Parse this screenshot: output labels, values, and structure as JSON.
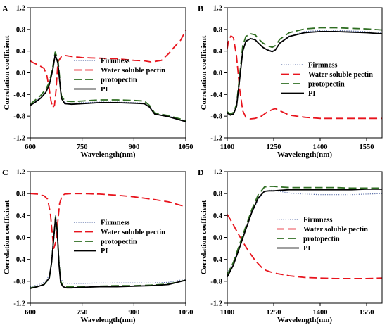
{
  "colors": {
    "firmness": "#5b6fa8",
    "water_soluble_pectin": "#e8141d",
    "protopectin": "#2f6e22",
    "pi": "#000000"
  },
  "chart_data": [
    {
      "panel": "A",
      "type": "line",
      "xlabel": "Wavelength(nm)",
      "ylabel": "Correlation coefficient",
      "xlim": [
        600,
        1050
      ],
      "ylim": [
        -1.2,
        1.2
      ],
      "xticks": [
        600,
        750,
        900,
        1050
      ],
      "xtick_labels": [
        "600",
        "750",
        "900",
        "1050"
      ],
      "yticks": [
        1.2,
        0.8,
        0.4,
        0.0,
        -0.4,
        -0.8,
        -1.2
      ],
      "ytick_labels": [
        "1.2",
        "0.8",
        "0.4",
        "0.0",
        "-0.4",
        "-0.8",
        "-1.2"
      ],
      "legend_position": "center",
      "series": [
        {
          "name": "Firmness",
          "style": "dotted",
          "color_key": "firmness",
          "x": [
            600,
            615,
            630,
            645,
            655,
            665,
            672,
            680,
            690,
            700,
            720,
            750,
            800,
            850,
            900,
            930,
            945,
            960,
            1000,
            1050
          ],
          "y": [
            -0.58,
            -0.52,
            -0.46,
            -0.35,
            -0.22,
            0.05,
            0.35,
            0.2,
            -0.45,
            -0.55,
            -0.56,
            -0.55,
            -0.54,
            -0.54,
            -0.55,
            -0.56,
            -0.62,
            -0.75,
            -0.8,
            -0.88
          ]
        },
        {
          "name": "Water soluble pectin",
          "style": "dashed",
          "color_key": "water_soluble_pectin",
          "x": [
            600,
            610,
            625,
            640,
            648,
            655,
            660,
            665,
            670,
            675,
            680,
            690,
            700,
            720,
            750,
            800,
            850,
            900,
            930,
            950,
            980,
            1000,
            1020,
            1035,
            1050
          ],
          "y": [
            0.22,
            0.18,
            0.14,
            0.08,
            -0.05,
            -0.3,
            -0.52,
            -0.64,
            -0.6,
            -0.3,
            0.2,
            0.3,
            0.32,
            0.3,
            0.28,
            0.27,
            0.26,
            0.23,
            0.22,
            0.2,
            0.23,
            0.35,
            0.5,
            0.6,
            0.78
          ]
        },
        {
          "name": "protopectin",
          "style": "dashed",
          "color_key": "protopectin",
          "x": [
            600,
            615,
            630,
            645,
            655,
            665,
            672,
            680,
            690,
            700,
            720,
            750,
            800,
            850,
            900,
            930,
            945,
            960,
            1000,
            1050
          ],
          "y": [
            -0.58,
            -0.5,
            -0.42,
            -0.3,
            -0.18,
            0.1,
            0.38,
            0.25,
            -0.42,
            -0.52,
            -0.53,
            -0.52,
            -0.5,
            -0.5,
            -0.51,
            -0.52,
            -0.6,
            -0.74,
            -0.79,
            -0.88
          ]
        },
        {
          "name": "PI",
          "style": "solid",
          "color_key": "pi",
          "x": [
            600,
            615,
            630,
            645,
            655,
            665,
            672,
            680,
            690,
            700,
            720,
            750,
            800,
            850,
            900,
            930,
            945,
            960,
            1000,
            1050
          ],
          "y": [
            -0.6,
            -0.54,
            -0.47,
            -0.36,
            -0.22,
            0.05,
            0.33,
            0.18,
            -0.47,
            -0.57,
            -0.58,
            -0.57,
            -0.55,
            -0.55,
            -0.56,
            -0.57,
            -0.63,
            -0.76,
            -0.81,
            -0.9
          ]
        }
      ]
    },
    {
      "panel": "B",
      "type": "line",
      "xlabel": "Wavelength(nm)",
      "ylabel": "Correlation coefficient",
      "xlim": [
        1100,
        1600
      ],
      "ylim": [
        -1.2,
        1.2
      ],
      "xticks": [
        1100,
        1250,
        1400,
        1550
      ],
      "xtick_labels": [
        "1100",
        "1250",
        "1400",
        "1550"
      ],
      "yticks": [
        1.2,
        0.8,
        0.4,
        0.0,
        -0.4,
        -0.8,
        -1.2
      ],
      "ytick_labels": [
        "1.2",
        "0.8",
        "0.4",
        "0.0",
        "-0.4",
        "-0.8",
        "-1.2"
      ],
      "legend_position": "center",
      "series": [
        {
          "name": "Firmness",
          "style": "dotted",
          "color_key": "firmness",
          "x": [
            1100,
            1110,
            1120,
            1130,
            1140,
            1150,
            1160,
            1175,
            1190,
            1200,
            1215,
            1230,
            1245,
            1255,
            1270,
            1300,
            1350,
            1400,
            1450,
            1500,
            1550,
            1600
          ],
          "y": [
            -0.72,
            -0.76,
            -0.74,
            -0.6,
            -0.1,
            0.42,
            0.6,
            0.64,
            0.62,
            0.55,
            0.47,
            0.43,
            0.4,
            0.42,
            0.55,
            0.68,
            0.76,
            0.78,
            0.78,
            0.77,
            0.76,
            0.74
          ]
        },
        {
          "name": "Water soluble pectin",
          "style": "dashed",
          "color_key": "water_soluble_pectin",
          "x": [
            1100,
            1105,
            1112,
            1120,
            1130,
            1140,
            1150,
            1160,
            1175,
            1190,
            1210,
            1230,
            1245,
            1255,
            1270,
            1300,
            1350,
            1400,
            1500,
            1600
          ],
          "y": [
            0.45,
            0.62,
            0.68,
            0.65,
            0.3,
            -0.3,
            -0.7,
            -0.82,
            -0.85,
            -0.84,
            -0.8,
            -0.72,
            -0.68,
            -0.66,
            -0.7,
            -0.78,
            -0.82,
            -0.84,
            -0.84,
            -0.84
          ]
        },
        {
          "name": "protopectin",
          "style": "dashed",
          "color_key": "protopectin",
          "x": [
            1100,
            1110,
            1120,
            1130,
            1140,
            1150,
            1160,
            1175,
            1190,
            1200,
            1215,
            1230,
            1245,
            1255,
            1270,
            1300,
            1350,
            1400,
            1450,
            1500,
            1550,
            1600
          ],
          "y": [
            -0.72,
            -0.76,
            -0.73,
            -0.58,
            -0.05,
            0.5,
            0.67,
            0.72,
            0.7,
            0.63,
            0.55,
            0.5,
            0.47,
            0.5,
            0.62,
            0.74,
            0.81,
            0.83,
            0.83,
            0.82,
            0.81,
            0.79
          ]
        },
        {
          "name": "PI",
          "style": "solid",
          "color_key": "pi",
          "x": [
            1100,
            1110,
            1120,
            1130,
            1140,
            1150,
            1160,
            1175,
            1190,
            1200,
            1215,
            1230,
            1245,
            1255,
            1270,
            1300,
            1350,
            1400,
            1450,
            1500,
            1550,
            1600
          ],
          "y": [
            -0.74,
            -0.78,
            -0.76,
            -0.62,
            -0.12,
            0.4,
            0.58,
            0.63,
            0.61,
            0.55,
            0.47,
            0.42,
            0.39,
            0.42,
            0.55,
            0.67,
            0.74,
            0.76,
            0.76,
            0.75,
            0.74,
            0.72
          ]
        }
      ]
    },
    {
      "panel": "C",
      "type": "line",
      "xlabel": "Wavelength(nm)",
      "ylabel": "Correlation coefficient",
      "xlim": [
        600,
        1050
      ],
      "ylim": [
        -1.2,
        1.2
      ],
      "xticks": [
        600,
        750,
        900,
        1050
      ],
      "xtick_labels": [
        "600",
        "750",
        "900",
        "1050"
      ],
      "yticks": [
        1.2,
        0.8,
        0.4,
        0.0,
        -0.4,
        -0.8,
        -1.2
      ],
      "ytick_labels": [
        "1.2",
        "0.8",
        "0.4",
        "0.0",
        "-0.4",
        "-0.8",
        "-1.2"
      ],
      "legend_position": "center",
      "series": [
        {
          "name": "Firmness",
          "style": "dotted",
          "color_key": "firmness",
          "x": [
            600,
            620,
            640,
            655,
            662,
            668,
            673,
            678,
            683,
            688,
            695,
            705,
            720,
            750,
            800,
            850,
            900,
            950,
            1000,
            1050
          ],
          "y": [
            -0.9,
            -0.87,
            -0.82,
            -0.7,
            -0.4,
            0.05,
            0.42,
            0.2,
            -0.4,
            -0.75,
            -0.82,
            -0.84,
            -0.84,
            -0.84,
            -0.83,
            -0.83,
            -0.83,
            -0.83,
            -0.82,
            -0.76
          ]
        },
        {
          "name": "Water soluble pectin",
          "style": "dashed",
          "color_key": "water_soluble_pectin",
          "x": [
            600,
            620,
            640,
            650,
            658,
            664,
            668,
            672,
            676,
            680,
            685,
            692,
            700,
            720,
            750,
            800,
            850,
            900,
            950,
            1000,
            1050
          ],
          "y": [
            0.8,
            0.79,
            0.76,
            0.7,
            0.45,
            0.05,
            -0.2,
            -0.12,
            0.0,
            0.3,
            0.62,
            0.76,
            0.79,
            0.8,
            0.8,
            0.79,
            0.77,
            0.74,
            0.7,
            0.65,
            0.56
          ]
        },
        {
          "name": "protopectin",
          "style": "dashed",
          "color_key": "protopectin",
          "x": [
            600,
            620,
            640,
            655,
            662,
            668,
            673,
            678,
            683,
            688,
            695,
            705,
            720,
            750,
            800,
            850,
            900,
            950,
            1000,
            1050
          ],
          "y": [
            -0.92,
            -0.9,
            -0.86,
            -0.75,
            -0.45,
            0.0,
            0.38,
            0.15,
            -0.45,
            -0.8,
            -0.88,
            -0.9,
            -0.9,
            -0.9,
            -0.89,
            -0.88,
            -0.88,
            -0.87,
            -0.85,
            -0.78
          ]
        },
        {
          "name": "PI",
          "style": "solid",
          "color_key": "pi",
          "x": [
            600,
            620,
            640,
            655,
            662,
            668,
            673,
            678,
            683,
            688,
            695,
            705,
            720,
            750,
            800,
            850,
            900,
            950,
            1000,
            1050
          ],
          "y": [
            -0.93,
            -0.9,
            -0.86,
            -0.74,
            -0.45,
            0.0,
            0.35,
            0.12,
            -0.48,
            -0.83,
            -0.9,
            -0.92,
            -0.92,
            -0.91,
            -0.9,
            -0.9,
            -0.89,
            -0.88,
            -0.86,
            -0.78
          ]
        }
      ]
    },
    {
      "panel": "D",
      "type": "line",
      "xlabel": "Wavelength(nm)",
      "ylabel": "Correlation coefficient",
      "xlim": [
        1100,
        1600
      ],
      "ylim": [
        -1.2,
        1.2
      ],
      "xticks": [
        1100,
        1250,
        1400,
        1550
      ],
      "xtick_labels": [
        "1100",
        "1250",
        "1400",
        "1550"
      ],
      "yticks": [
        1.2,
        0.8,
        0.4,
        0.0,
        -0.4,
        -0.8,
        -1.2
      ],
      "ytick_labels": [
        "1.2",
        "0.8",
        "0.4",
        "0.0",
        "-0.4",
        "-0.8",
        "-1.2"
      ],
      "legend_position": "center-right",
      "series": [
        {
          "name": "Firmness",
          "style": "dotted",
          "color_key": "firmness",
          "x": [
            1100,
            1120,
            1140,
            1160,
            1180,
            1200,
            1220,
            1235,
            1250,
            1270,
            1300,
            1350,
            1400,
            1450,
            1500,
            1550,
            1600
          ],
          "y": [
            -0.65,
            -0.45,
            -0.15,
            0.15,
            0.45,
            0.7,
            0.83,
            0.86,
            0.86,
            0.84,
            0.81,
            0.79,
            0.78,
            0.78,
            0.78,
            0.79,
            0.8
          ]
        },
        {
          "name": "Water soluble pectin",
          "style": "dashed",
          "color_key": "water_soluble_pectin",
          "x": [
            1100,
            1115,
            1130,
            1150,
            1170,
            1190,
            1210,
            1225,
            1240,
            1260,
            1300,
            1350,
            1400,
            1450,
            1500,
            1550,
            1600
          ],
          "y": [
            0.42,
            0.28,
            0.12,
            -0.08,
            -0.26,
            -0.42,
            -0.54,
            -0.6,
            -0.63,
            -0.66,
            -0.7,
            -0.73,
            -0.74,
            -0.75,
            -0.75,
            -0.75,
            -0.74
          ]
        },
        {
          "name": "protopectin",
          "style": "dashed",
          "color_key": "protopectin",
          "x": [
            1100,
            1120,
            1140,
            1160,
            1180,
            1200,
            1220,
            1235,
            1250,
            1270,
            1300,
            1350,
            1400,
            1450,
            1500,
            1550,
            1600
          ],
          "y": [
            -0.68,
            -0.45,
            -0.12,
            0.2,
            0.52,
            0.78,
            0.92,
            0.93,
            0.93,
            0.92,
            0.91,
            0.91,
            0.91,
            0.91,
            0.9,
            0.9,
            0.9
          ]
        },
        {
          "name": "PI",
          "style": "solid",
          "color_key": "pi",
          "x": [
            1100,
            1120,
            1140,
            1160,
            1180,
            1200,
            1220,
            1235,
            1250,
            1270,
            1300,
            1350,
            1400,
            1450,
            1500,
            1550,
            1600
          ],
          "y": [
            -0.72,
            -0.5,
            -0.18,
            0.15,
            0.47,
            0.72,
            0.84,
            0.85,
            0.85,
            0.86,
            0.87,
            0.87,
            0.87,
            0.87,
            0.87,
            0.88,
            0.88
          ]
        }
      ]
    }
  ]
}
